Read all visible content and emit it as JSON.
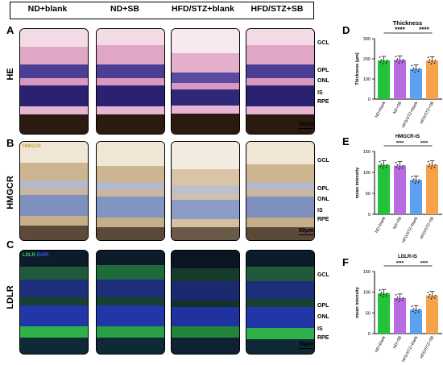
{
  "header": {
    "columns": [
      "ND+blank",
      "ND+SB",
      "HFD/STZ+blank",
      "HFD/STZ+SB"
    ]
  },
  "rows": [
    {
      "letter": "A",
      "label": "HE",
      "layers": [
        "GCL",
        "OPL",
        "ONL",
        "IS",
        "RPE"
      ],
      "scale": "50μm"
    },
    {
      "letter": "B",
      "label": "HMGCR",
      "stain": "HMGCR",
      "layers": [
        "GCL",
        "OPL",
        "ONL",
        "IS",
        "RPE"
      ],
      "scale": "50μm"
    },
    {
      "letter": "C",
      "label": "LDLR",
      "stain1": "LDLR",
      "stain2": "DAPI",
      "layers": [
        "GCL",
        "OPL",
        "ONL",
        "IS",
        "RPE"
      ],
      "scale": "50μm"
    }
  ],
  "colors": {
    "g1": "#22c23a",
    "g2": "#b66be0",
    "g3": "#5ea0f0",
    "g4": "#f5a248"
  },
  "chart_data": [
    {
      "type": "bar",
      "letter": "D",
      "title": "Thickness",
      "ylabel": "Thickness (μm)",
      "ylim": [
        0,
        300
      ],
      "yticks": [
        0,
        100,
        200,
        300
      ],
      "categories": [
        "ND+blank",
        "ND+SB",
        "HFD/STZ+blank",
        "HFD/STZ+SB"
      ],
      "values": [
        192,
        195,
        150,
        191
      ],
      "sig": [
        {
          "from": 0,
          "to": 2,
          "label": "****"
        },
        {
          "from": 2,
          "to": 3,
          "label": "****"
        }
      ]
    },
    {
      "type": "bar",
      "letter": "E",
      "title": "HMGCR-IS",
      "ylabel": "mean intensity",
      "ylim": [
        0,
        150
      ],
      "yticks": [
        0,
        50,
        100,
        150
      ],
      "categories": [
        "ND+blank",
        "ND+SB",
        "HFD/STZ+blank",
        "HFD/STZ+SB"
      ],
      "values": [
        118,
        116,
        82,
        118
      ],
      "sig": [
        {
          "from": 0,
          "to": 2,
          "label": "****"
        },
        {
          "from": 2,
          "to": 3,
          "label": "****"
        }
      ]
    },
    {
      "type": "bar",
      "letter": "F",
      "title": "LDLR-IS",
      "ylabel": "mean intensity",
      "ylim": [
        0,
        150
      ],
      "yticks": [
        0,
        50,
        100,
        150
      ],
      "categories": [
        "ND+blank",
        "ND+SB",
        "HFD/STZ+blank",
        "HFD/STZ+SB"
      ],
      "values": [
        97,
        86,
        58,
        92
      ],
      "sig": [
        {
          "from": 0,
          "to": 2,
          "label": "****"
        },
        {
          "from": 2,
          "to": 3,
          "label": "****"
        }
      ]
    }
  ]
}
